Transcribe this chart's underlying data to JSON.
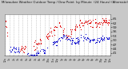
{
  "bg_color": "#c8c8c8",
  "plot_bg": "#ffffff",
  "red_color": "#dd0000",
  "blue_color": "#0000cc",
  "ylim": [
    39,
    68
  ],
  "yticks": [
    41,
    44,
    47,
    50,
    53,
    56,
    59,
    62,
    65
  ],
  "xlim": [
    0,
    1439
  ],
  "x_tick_positions": [
    0,
    60,
    120,
    180,
    240,
    300,
    360,
    420,
    480,
    540,
    600,
    660,
    720,
    780,
    840,
    900,
    960,
    1020,
    1080,
    1140,
    1200,
    1260,
    1320,
    1380,
    1439
  ],
  "x_tick_labels": [
    "12a",
    "1a",
    "2a",
    "3a",
    "4a",
    "5a",
    "6a",
    "7a",
    "8a",
    "9a",
    "10a",
    "11a",
    "12p",
    "1p",
    "2p",
    "3p",
    "4p",
    "5p",
    "6p",
    "7p",
    "8p",
    "9p",
    "10p",
    "11p",
    "12a"
  ]
}
